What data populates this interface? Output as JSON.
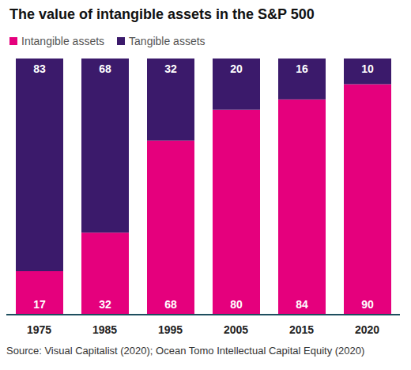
{
  "chart_data": {
    "type": "bar",
    "title": "The value of intangible assets in the S&P 500",
    "categories": [
      "1975",
      "1985",
      "1995",
      "2005",
      "2015",
      "2020"
    ],
    "series": [
      {
        "name": "Intangible assets",
        "color": "#e5007d",
        "values": [
          17,
          32,
          68,
          80,
          84,
          90
        ]
      },
      {
        "name": "Tangible assets",
        "color": "#3b1a6b",
        "values": [
          83,
          68,
          32,
          20,
          16,
          10
        ]
      }
    ],
    "ylim": [
      0,
      100
    ],
    "stacked": true,
    "data_labels": true,
    "tick_labels": "x",
    "legend": "top-left",
    "annotations": [
      "Source: Visual Capitalist (2020); Ocean Tomo Intellectual Capital Equity (2020)"
    ]
  }
}
